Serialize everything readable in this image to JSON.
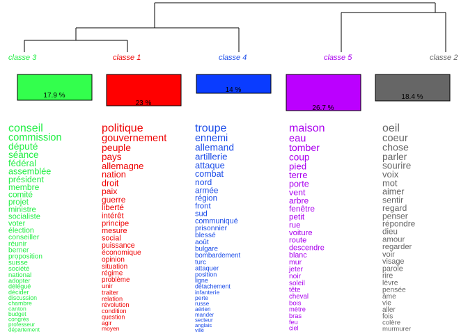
{
  "classes": [
    {
      "id": "c3",
      "label": "classe  3",
      "percent": "17.9 %",
      "share": 17.9,
      "color": "#33ff4d",
      "text_color": "#22ee44",
      "words": [
        "conseil",
        "commission",
        "député",
        "séance",
        "fédéral",
        "assemblée",
        "président",
        "membre",
        "comité",
        "projet",
        "ministre",
        "socialiste",
        "voter",
        "élection",
        "conseiller",
        "réunir",
        "berner",
        "proposition",
        "suisse",
        "société",
        "national",
        "adopter",
        "délégué",
        "décider",
        "discussion",
        "chambre",
        "canton",
        "budget",
        "congrès",
        "professeur",
        "département"
      ]
    },
    {
      "id": "c1",
      "label": "classe  1",
      "percent": "23 %",
      "share": 23.0,
      "color": "#ff0000",
      "text_color": "#ee0000",
      "words": [
        "politique",
        "gouvernement",
        "peuple",
        "pays",
        "allemagne",
        "nation",
        "droit",
        "paix",
        "guerre",
        "liberté",
        "intérêt",
        "principe",
        "mesure",
        "social",
        "puissance",
        "économique",
        "opinion",
        "situation",
        "régime",
        "problème",
        "unir",
        "traiter",
        "relation",
        "révolution",
        "condition",
        "question",
        "agir",
        "moyen"
      ]
    },
    {
      "id": "c4",
      "label": "classe  4",
      "percent": "14 %",
      "share": 14.0,
      "color": "#0a3cff",
      "text_color": "#1a4be8",
      "words": [
        "troupe",
        "ennemi",
        "allemand",
        "artillerie",
        "attaque",
        "combat",
        "nord",
        "armée",
        "région",
        "front",
        "sud",
        "communiqué",
        "prisonnier",
        "blessé",
        "août",
        "bulgare",
        "bombardement",
        "turc",
        "attaquer",
        "position",
        "ligne",
        "détachement",
        "infanterie",
        "perte",
        "russe",
        "aérien",
        "mander",
        "secteur",
        "anglais",
        "ville"
      ]
    },
    {
      "id": "c5",
      "label": "classe  5",
      "percent": "26.7 %",
      "share": 26.7,
      "color": "#bb00ff",
      "text_color": "#aa00ee",
      "words": [
        "maison",
        "eau",
        "tomber",
        "coup",
        "pied",
        "terre",
        "porte",
        "vent",
        "arbre",
        "fenêtre",
        "petit",
        "rue",
        "voiture",
        "route",
        "descendre",
        "blanc",
        "mur",
        "jeter",
        "noir",
        "soleil",
        "tête",
        "cheval",
        "bois",
        "mètre",
        "bras",
        "feu",
        "ciel"
      ]
    },
    {
      "id": "c2",
      "label": "classe  2",
      "percent": "18.4 %",
      "share": 18.4,
      "color": "#666666",
      "text_color": "#666666",
      "words": [
        "oeil",
        "coeur",
        "chose",
        "parler",
        "sourire",
        "voix",
        "mot",
        "aimer",
        "sentir",
        "regard",
        "penser",
        "répondre",
        "dieu",
        "amour",
        "regarder",
        "voir",
        "visage",
        "parole",
        "rire",
        "lèvre",
        "pensée",
        "âme",
        "vie",
        "aller",
        "fois",
        "colère",
        "murmurer"
      ]
    }
  ]
}
